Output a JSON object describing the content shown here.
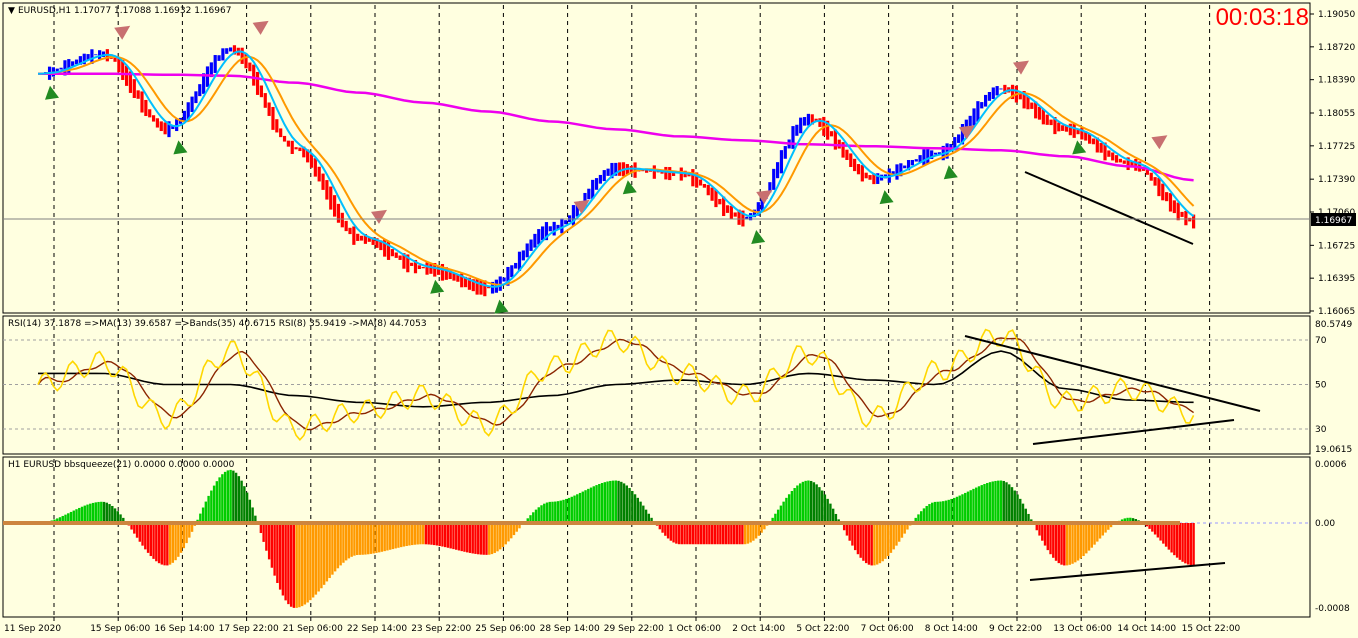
{
  "timer": "00:03:18",
  "price_panel": {
    "header": "EURUSD,H1  1.17077 1.17088 1.16932 1.16967",
    "current_price": "1.16967",
    "y_ticks": [
      "1.19050",
      "1.18720",
      "1.18390",
      "1.18055",
      "1.17725",
      "1.17390",
      "1.17060",
      "1.16725",
      "1.16395",
      "1.16065"
    ],
    "y_values": [
      1.1905,
      1.1872,
      1.1839,
      1.18055,
      1.17725,
      1.1739,
      1.1706,
      1.16725,
      1.16395,
      1.16065
    ]
  },
  "rsi_panel": {
    "header": "RSI(14) 37.1878  =>MA(13) 39.6587  =>Bands(35) 40.6715  RSI(8) 35.9419  ->MA(8) 44.7053",
    "max_label": "80.5749",
    "min_label": "19.0615",
    "y_ticks": [
      "70",
      "50",
      "30"
    ],
    "y_values": [
      70,
      50,
      30
    ],
    "range": [
      19.0615,
      80.5749
    ]
  },
  "squeeze_panel": {
    "header": "H1 EURUSD bbsqueeze(21) 0.0000 0.0000 0.0000",
    "y_ticks": [
      "0.0006",
      "0.00",
      "-0.0008"
    ],
    "y_values": [
      0.0006,
      0.0,
      -0.0008
    ]
  },
  "x_labels": [
    "11 Sep 2020",
    "15 Sep 06:00",
    "16 Sep 14:00",
    "17 Sep 22:00",
    "21 Sep 06:00",
    "22 Sep 14:00",
    "23 Sep 22:00",
    "25 Sep 06:00",
    "28 Sep 14:00",
    "29 Sep 22:00",
    "1 Oct 06:00",
    "2 Oct 14:00",
    "5 Oct 22:00",
    "7 Oct 06:00",
    "8 Oct 14:00",
    "9 Oct 22:00",
    "13 Oct 06:00",
    "14 Oct 14:00",
    "15 Oct 22:00"
  ],
  "colors": {
    "up": "#0000ff",
    "down": "#ff0000",
    "ma_fast": "#00bfff",
    "ma_slow": "#ff9900",
    "ma_long": "#ee00ee",
    "rsi": "#ffd700",
    "rsi_ma": "#8b2500",
    "bands": "#000000",
    "sq_green": "#00cc00",
    "sq_dkgreen": "#008000",
    "sq_orange": "#ff9900",
    "sq_red": "#ff0000"
  },
  "chart_data": [
    {
      "type": "line",
      "x": [
        "11 Sep 2020",
        "15 Sep 06:00",
        "16 Sep 14:00",
        "17 Sep 22:00",
        "21 Sep 06:00",
        "22 Sep 14:00",
        "23 Sep 22:00",
        "25 Sep 06:00",
        "28 Sep 14:00",
        "29 Sep 22:00",
        "1 Oct 06:00",
        "2 Oct 14:00",
        "5 Oct 22:00",
        "7 Oct 06:00",
        "8 Oct 14:00",
        "9 Oct 22:00",
        "13 Oct 06:00",
        "14 Oct 14:00",
        "15 Oct 22:00"
      ],
      "series": [
        {
          "values": [
            1.1845,
            1.1865,
            1.179,
            1.187,
            1.177,
            1.168,
            1.165,
            1.163,
            1.169,
            1.175,
            1.1745,
            1.17,
            1.18,
            1.174,
            1.1765,
            1.183,
            1.179,
            1.1755,
            1.1697
          ]
        },
        {
          "values": [
            1.1845,
            1.1845,
            1.1844,
            1.1843,
            1.1836,
            1.1826,
            1.1816,
            1.1807,
            1.1797,
            1.1789,
            1.1782,
            1.1778,
            1.1774,
            1.1772,
            1.177,
            1.1768,
            1.1762,
            1.1752,
            1.1738
          ]
        }
      ],
      "ylim": [
        1.16065,
        1.1905
      ]
    },
    {
      "type": "line",
      "x": [
        "11 Sep 2020",
        "15 Sep 06:00",
        "16 Sep 14:00",
        "17 Sep 22:00",
        "21 Sep 06:00",
        "22 Sep 14:00",
        "23 Sep 22:00",
        "25 Sep 06:00",
        "28 Sep 14:00",
        "29 Sep 22:00",
        "1 Oct 06:00",
        "2 Oct 14:00",
        "5 Oct 22:00",
        "7 Oct 06:00",
        "8 Oct 14:00",
        "9 Oct 22:00",
        "13 Oct 06:00",
        "14 Oct 14:00",
        "15 Oct 22:00"
      ],
      "series": [
        {
          "values": [
            50,
            60,
            35,
            65,
            30,
            38,
            45,
            32,
            58,
            70,
            55,
            45,
            64,
            35,
            56,
            72,
            42,
            48,
            37
          ]
        },
        {
          "values": [
            55,
            58,
            42,
            60,
            35,
            40,
            42,
            38,
            55,
            65,
            55,
            48,
            60,
            40,
            52,
            70,
            45,
            45,
            40
          ]
        },
        {
          "values": [
            55,
            55,
            50,
            50,
            45,
            42,
            40,
            42,
            45,
            50,
            52,
            50,
            55,
            52,
            50,
            65,
            48,
            43,
            42
          ]
        }
      ],
      "ylim": [
        19.0615,
        80.5749
      ]
    },
    {
      "type": "area",
      "x": [
        "11 Sep 2020",
        "15 Sep 06:00",
        "16 Sep 14:00",
        "17 Sep 22:00",
        "21 Sep 06:00",
        "22 Sep 14:00",
        "23 Sep 22:00",
        "25 Sep 06:00",
        "28 Sep 14:00",
        "29 Sep 22:00",
        "1 Oct 06:00",
        "2 Oct 14:00",
        "5 Oct 22:00",
        "7 Oct 06:00",
        "8 Oct 14:00",
        "9 Oct 22:00",
        "13 Oct 06:00",
        "14 Oct 14:00",
        "15 Oct 22:00"
      ],
      "series": [
        {
          "values": [
            0.0,
            0.0002,
            -0.0004,
            0.0005,
            -0.0008,
            -0.0003,
            -0.0002,
            -0.0003,
            0.0002,
            0.0004,
            -0.0002,
            -0.0002,
            0.0004,
            -0.0004,
            0.0002,
            0.0004,
            -0.0004,
            5e-05,
            -0.0004
          ]
        }
      ],
      "ylim": [
        -0.0008,
        0.0006
      ]
    }
  ]
}
